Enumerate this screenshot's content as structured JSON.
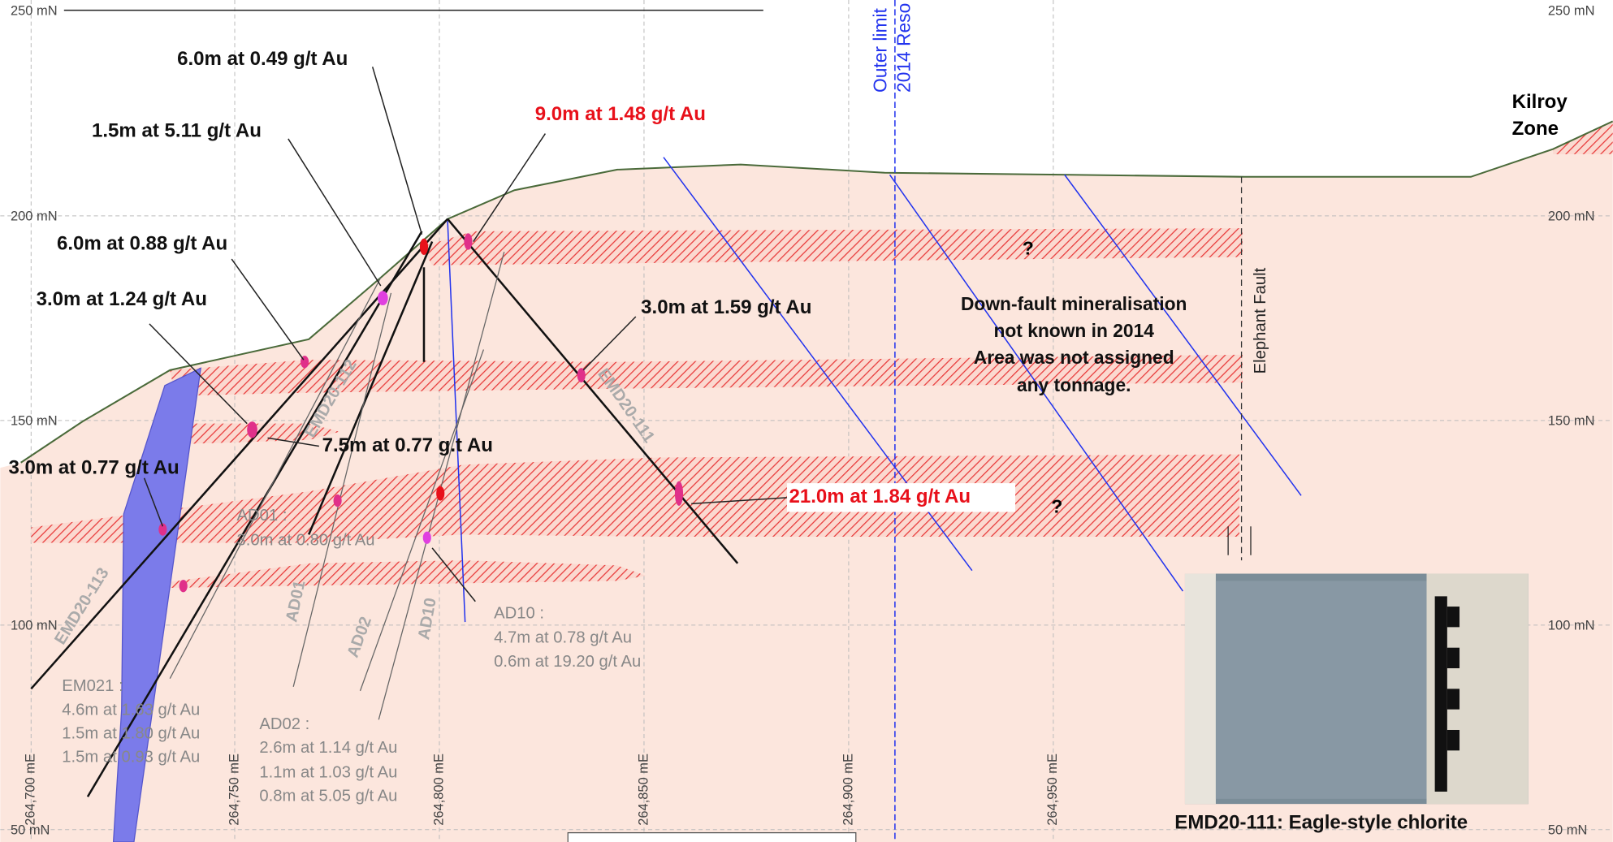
{
  "elevation_labels": [
    "250 mN",
    "200 mN",
    "150 mN",
    "100 mN",
    "50 mN"
  ],
  "easting_labels": [
    "264,700 mE",
    "264,750 mE",
    "264,800 mE",
    "264,850 mE",
    "264,900 mE",
    "264,950 mE"
  ],
  "intercepts": [
    "6.0m at 0.49 g/t Au",
    "1.5m at 5.11 g/t Au",
    "9.0m at 1.48 g/t Au",
    "6.0m at 0.88 g/t Au",
    "3.0m at 1.24 g/t Au",
    "3.0m at 1.59 g/t Au",
    "7.5m at 0.77 g.t Au",
    "3.0m at 0.77 g/t Au",
    "21.0m at 1.84 g/t Au"
  ],
  "historic": {
    "ad01": [
      "AD01 :",
      "3.0m at 0.80 g/t Au"
    ],
    "ad10": [
      "AD10 :",
      "4.7m at 0.78 g/t Au",
      "0.6m at 19.20 g/t Au"
    ],
    "ad02": [
      "AD02 :",
      "2.6m at 1.14 g/t Au",
      "1.1m at 1.03 g/t Au",
      "0.8m at 5.05 g/t Au"
    ],
    "em021": [
      "EM021 :",
      "4.6m at 1.63 g/t Au",
      "1.5m at 1.80 g/t Au",
      "1.5m at 0.93 g/t Au"
    ]
  },
  "holes": [
    "EMD20-113",
    "EMD20-112",
    "EMD20-111",
    "AD01",
    "AD02",
    "AD10"
  ],
  "note": [
    "Down-fault mineralisation",
    "not known in 2014",
    "Area was not assigned",
    "any tonnage."
  ],
  "zone": [
    "Kilroy",
    "Zone"
  ],
  "fault": "Elephant Fault",
  "resource_limit": [
    "Outer limit",
    "2014 Reso"
  ],
  "unknown": "?",
  "caption": "EMD20-111: Eagle-style chlorite"
}
